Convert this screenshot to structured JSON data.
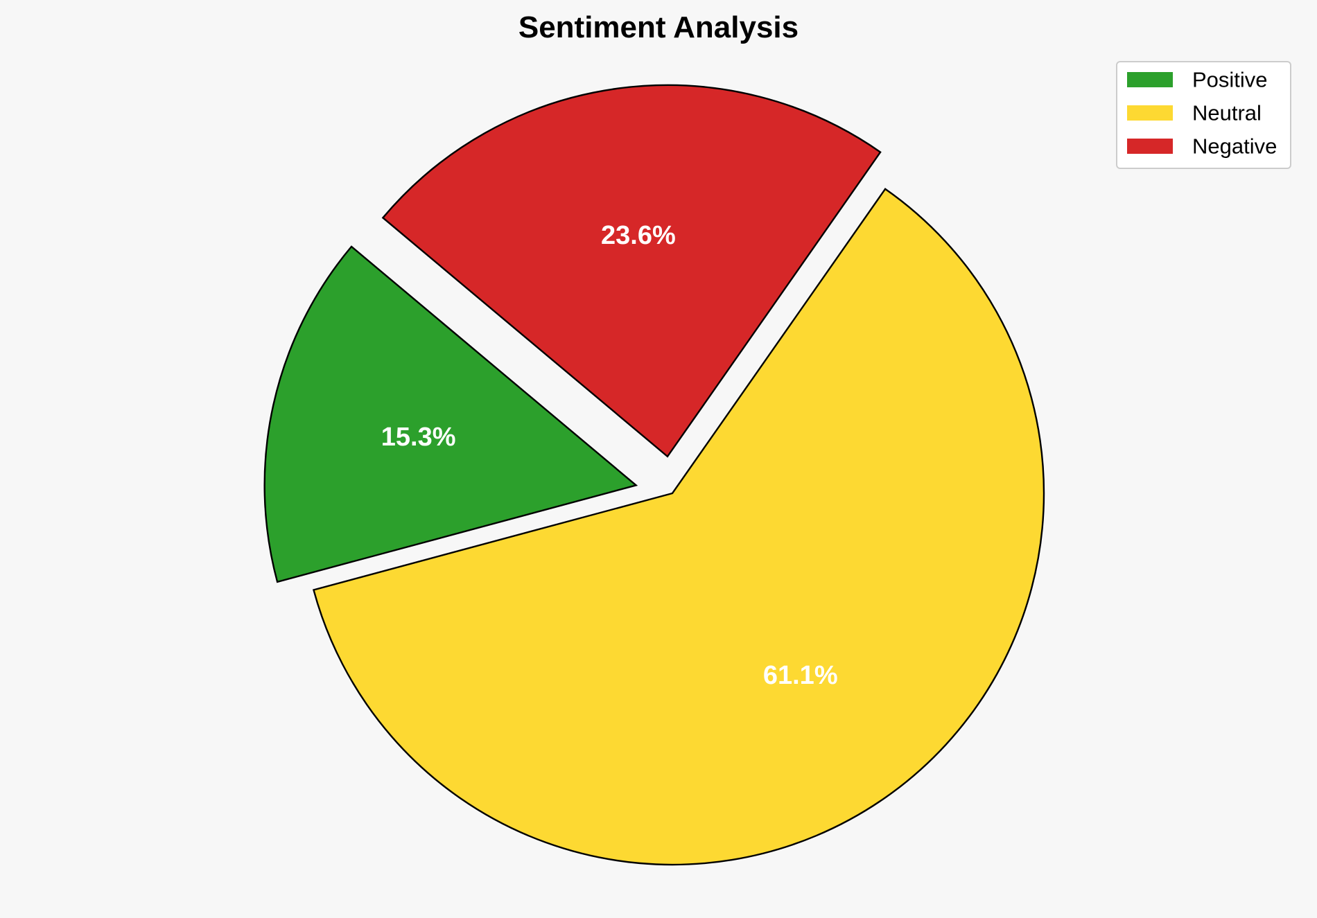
{
  "chart_data": {
    "type": "pie",
    "title": "Sentiment Analysis",
    "categories": [
      "Positive",
      "Neutral",
      "Negative"
    ],
    "values": [
      15.3,
      61.1,
      23.6
    ],
    "value_labels": [
      "15.3%",
      "61.1%",
      "23.6%"
    ],
    "colors": [
      "#2ca02c",
      "#fdd932",
      "#d62728"
    ],
    "exploded": [
      true,
      false,
      true
    ],
    "start_angle_deg": 140,
    "direction": "counterclockwise",
    "legend": {
      "placement": "top-right",
      "entries": [
        "Positive",
        "Neutral",
        "Negative"
      ]
    }
  }
}
